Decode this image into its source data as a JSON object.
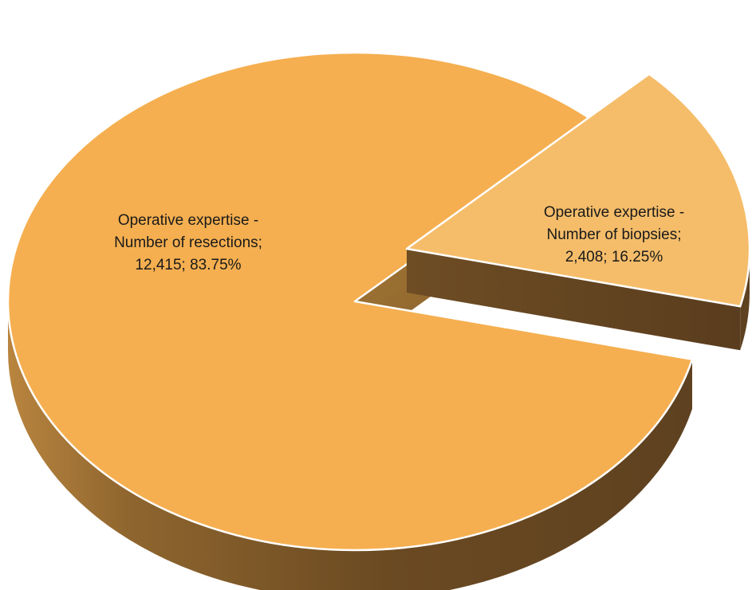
{
  "chart_data": {
    "type": "pie",
    "title": "",
    "slices": [
      {
        "category": "Operative expertise - Number of resections",
        "value": 12415,
        "percent": 83.75,
        "label_lines": [
          "Operative expertise -",
          "Number of resections;",
          "12,415; 83.75%"
        ]
      },
      {
        "category": "Operative expertise - Number of biopsies",
        "value": 2408,
        "percent": 16.25,
        "label_lines": [
          "Operative expertise -",
          "Number of biopsies;",
          "2,408; 16.25%"
        ]
      }
    ],
    "legend": false,
    "three_d": true,
    "exploded_slice": "Operative expertise - Number of biopsies"
  },
  "colors": {
    "resections_top": "#F5AF50",
    "biopsies_top": "#F5BD6A",
    "side_light": "#B9853F",
    "side_dark": "#5E4120",
    "edge": "#FFFFFF"
  }
}
